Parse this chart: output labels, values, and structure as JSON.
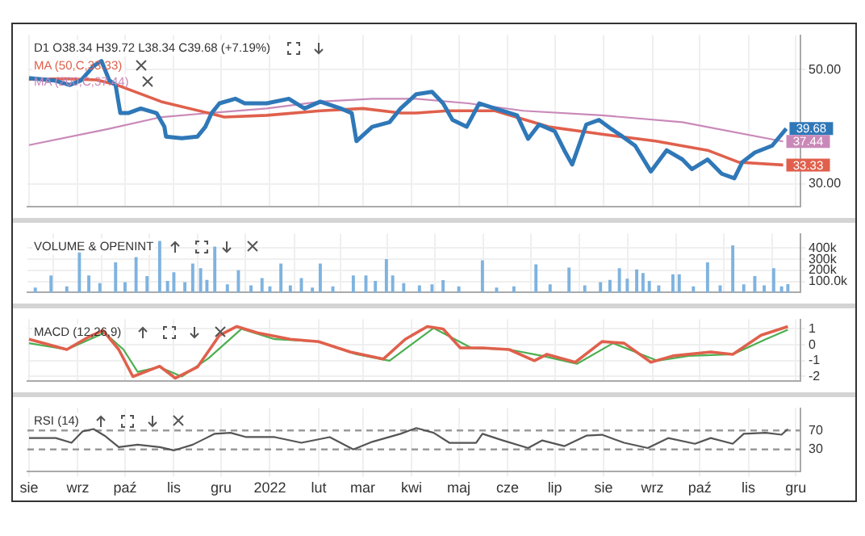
{
  "chart_data": [
    {
      "type": "line",
      "title": "D1 O38.34 H39.72 L38.34 C39.68 (+7.19%)",
      "legend": "top left",
      "grid": true,
      "tick_labels": "y",
      "xlim": [
        "2021-07-31",
        "2022-12-04"
      ],
      "xticks": [
        {
          "value": "2021-08-01",
          "label": null
        },
        {
          "value": "2021-09-01",
          "label": null
        },
        {
          "value": "2021-10-01",
          "label": null
        },
        {
          "value": "2021-11-01",
          "label": null
        },
        {
          "value": "2021-12-01",
          "label": null
        },
        {
          "value": "2022-01-01",
          "label": null
        },
        {
          "value": "2022-02-01",
          "label": null
        },
        {
          "value": "2022-03-01",
          "label": null
        },
        {
          "value": "2022-04-01",
          "label": null
        },
        {
          "value": "2022-05-01",
          "label": null
        },
        {
          "value": "2022-06-01",
          "label": null
        },
        {
          "value": "2022-07-01",
          "label": null
        },
        {
          "value": "2022-08-01",
          "label": null
        },
        {
          "value": "2022-09-01",
          "label": null
        },
        {
          "value": "2022-10-01",
          "label": null
        },
        {
          "value": "2022-11-01",
          "label": null
        },
        {
          "value": "2022-12-01",
          "label": null
        }
      ],
      "ylim": [
        26,
        56
      ],
      "yticks": [
        {
          "value": 30,
          "label": "30.00"
        },
        {
          "value": 50,
          "label": "50.00"
        }
      ],
      "series": [
        {
          "color": "#2f78b8",
          "x": [
            "2021-08-01",
            "2021-08-17",
            "2021-08-27",
            "2021-09-03",
            "2021-09-11",
            "2021-09-16",
            "2021-09-21",
            "2021-09-25",
            "2021-09-28",
            "2021-10-03",
            "2021-10-11",
            "2021-10-21",
            "2021-10-26",
            "2021-10-27",
            "2021-11-06",
            "2021-11-16",
            "2021-11-21",
            "2021-11-25",
            "2021-11-30",
            "2021-12-10",
            "2021-12-16",
            "2021-12-30",
            "2022-01-13",
            "2022-01-23",
            "2022-02-02",
            "2022-02-15",
            "2022-02-22",
            "2022-02-25",
            "2022-03-07",
            "2022-03-18",
            "2022-03-25",
            "2022-04-04",
            "2022-04-14",
            "2022-04-21",
            "2022-04-27",
            "2022-05-06",
            "2022-05-14",
            "2022-05-24",
            "2022-06-07",
            "2022-06-14",
            "2022-06-21",
            "2022-07-01",
            "2022-07-07",
            "2022-07-12",
            "2022-07-21",
            "2022-07-29",
            "2022-08-06",
            "2022-08-13",
            "2022-08-21",
            "2022-08-31",
            "2022-09-10",
            "2022-09-20",
            "2022-09-26",
            "2022-10-06",
            "2022-10-15",
            "2022-10-23",
            "2022-10-28",
            "2022-11-05",
            "2022-11-16",
            "2022-11-25"
          ],
          "values": [
            48.5,
            48.1,
            47.3,
            48.1,
            50.6,
            51.5,
            48.1,
            47.3,
            42.4,
            42.4,
            43.2,
            42.4,
            40.0,
            38.3,
            38.0,
            38.3,
            40.0,
            42.4,
            44.1,
            44.9,
            44.1,
            44.1,
            44.9,
            43.2,
            44.4,
            43.2,
            42.4,
            37.5,
            40.0,
            40.8,
            43.2,
            45.7,
            46.1,
            44.1,
            41.2,
            40.0,
            44.1,
            43.2,
            42.0,
            37.9,
            40.4,
            39.2,
            35.9,
            33.4,
            40.4,
            41.2,
            39.6,
            38.3,
            36.7,
            32.2,
            35.9,
            34.3,
            32.6,
            34.3,
            31.8,
            31.0,
            33.8,
            35.5,
            36.7,
            39.68
          ],
          "value_labels": [
            null,
            null,
            null,
            null,
            null,
            null,
            null,
            null,
            null,
            null,
            null,
            null,
            null,
            null,
            null,
            null,
            null,
            null,
            null,
            null,
            null,
            null,
            null,
            null,
            null,
            null,
            null,
            null,
            null,
            null,
            null,
            null,
            null,
            null,
            null,
            null,
            null,
            null,
            null,
            null,
            null,
            null,
            null,
            null,
            null,
            null,
            null,
            null,
            null,
            null,
            null,
            null,
            null,
            null,
            null,
            null,
            null,
            null,
            null,
            "39.68"
          ]
        },
        {
          "name": "MA (50,C,33.33)",
          "color": "#e0604c",
          "x": [
            "2021-08-01",
            "2021-08-24",
            "2021-09-13",
            "2021-09-26",
            "2021-10-24",
            "2021-11-23",
            "2021-12-03",
            "2021-12-30",
            "2022-02-02",
            "2022-03-01",
            "2022-03-25",
            "2022-04-04",
            "2022-04-24",
            "2022-05-24",
            "2022-06-27",
            "2022-07-31",
            "2022-09-03",
            "2022-10-06",
            "2022-10-26",
            "2022-11-23"
          ],
          "values": [
            48.3,
            48.4,
            48.2,
            47.3,
            44.4,
            42.4,
            41.7,
            42.0,
            42.8,
            43.2,
            42.4,
            42.4,
            42.8,
            42.8,
            40.0,
            38.7,
            37.5,
            35.9,
            33.8,
            33.33
          ],
          "value_labels": [
            null,
            null,
            null,
            null,
            null,
            null,
            null,
            null,
            null,
            null,
            null,
            null,
            null,
            null,
            null,
            null,
            null,
            null,
            null,
            "33.33"
          ]
        },
        {
          "name": "MA (200,C,37.44)",
          "color": "#c989b8",
          "x": [
            "2021-08-01",
            "2021-09-20",
            "2021-10-24",
            "2021-11-23",
            "2021-12-30",
            "2022-02-02",
            "2022-03-07",
            "2022-04-04",
            "2022-05-07",
            "2022-06-11",
            "2022-07-31",
            "2022-09-20",
            "2022-11-23"
          ],
          "values": [
            36.8,
            39.6,
            41.7,
            42.4,
            43.2,
            44.4,
            44.9,
            44.9,
            44.1,
            42.8,
            42.0,
            40.8,
            37.44
          ],
          "value_labels": [
            null,
            null,
            null,
            null,
            null,
            null,
            null,
            null,
            null,
            null,
            null,
            null,
            "37.44"
          ]
        }
      ]
    },
    {
      "type": "bar",
      "title": "VOLUME & OPENINT",
      "grid": true,
      "tick_labels": "y",
      "color": "#7fb3df",
      "xlim": [
        "2021-07-31",
        "2022-12-04"
      ],
      "xticks": [
        {
          "value": "2021-08-01",
          "label": null
        },
        {
          "value": "2021-09-01",
          "label": null
        },
        {
          "value": "2021-10-01",
          "label": null
        },
        {
          "value": "2021-11-01",
          "label": null
        },
        {
          "value": "2021-12-01",
          "label": null
        },
        {
          "value": "2022-01-01",
          "label": null
        },
        {
          "value": "2022-02-01",
          "label": null
        },
        {
          "value": "2022-03-01",
          "label": null
        },
        {
          "value": "2022-04-01",
          "label": null
        },
        {
          "value": "2022-05-01",
          "label": null
        },
        {
          "value": "2022-06-01",
          "label": null
        },
        {
          "value": "2022-07-01",
          "label": null
        },
        {
          "value": "2022-08-01",
          "label": null
        },
        {
          "value": "2022-09-01",
          "label": null
        },
        {
          "value": "2022-10-01",
          "label": null
        },
        {
          "value": "2022-11-01",
          "label": null
        },
        {
          "value": "2022-12-01",
          "label": null
        }
      ],
      "ylim": [
        0,
        530000
      ],
      "yticks": [
        {
          "value": 100000,
          "label": "100.0k"
        },
        {
          "value": 200000,
          "label": "200k"
        },
        {
          "value": 300000,
          "label": "300k"
        },
        {
          "value": 400000,
          "label": "400k"
        }
      ],
      "x": [
        "2021-08-05",
        "2021-08-15",
        "2021-08-25",
        "2021-09-02",
        "2021-09-08",
        "2021-09-15",
        "2021-09-25",
        "2021-10-01",
        "2021-10-08",
        "2021-10-15",
        "2021-10-23",
        "2021-10-28",
        "2021-11-01",
        "2021-11-08",
        "2021-11-13",
        "2021-11-18",
        "2021-11-22",
        "2021-11-27",
        "2021-12-05",
        "2021-12-12",
        "2021-12-20",
        "2021-12-27",
        "2022-01-01",
        "2022-01-08",
        "2022-01-14",
        "2022-01-21",
        "2022-01-28",
        "2022-02-02",
        "2022-02-10",
        "2022-02-23",
        "2022-03-03",
        "2022-03-09",
        "2022-03-16",
        "2022-03-20",
        "2022-03-27",
        "2022-04-06",
        "2022-04-14",
        "2022-04-21",
        "2022-05-01",
        "2022-05-16",
        "2022-05-25",
        "2022-06-05",
        "2022-06-19",
        "2022-06-28",
        "2022-07-10",
        "2022-07-20",
        "2022-07-30",
        "2022-08-05",
        "2022-08-11",
        "2022-08-16",
        "2022-08-22",
        "2022-08-26",
        "2022-08-30",
        "2022-09-05",
        "2022-09-14",
        "2022-09-18",
        "2022-09-27",
        "2022-10-06",
        "2022-10-14",
        "2022-10-22",
        "2022-10-29",
        "2022-11-05",
        "2022-11-11",
        "2022-11-17",
        "2022-11-22",
        "2022-11-26"
      ],
      "values": [
        40000,
        150000,
        50000,
        357000,
        150000,
        80000,
        268000,
        90000,
        314000,
        143000,
        460000,
        100000,
        179000,
        90000,
        257000,
        214000,
        110000,
        410000,
        70000,
        196000,
        60000,
        125000,
        50000,
        257000,
        60000,
        125000,
        40000,
        257000,
        50000,
        150000,
        150000,
        100000,
        296000,
        150000,
        80000,
        60000,
        70000,
        107000,
        50000,
        286000,
        40000,
        50000,
        250000,
        70000,
        221000,
        60000,
        90000,
        110000,
        214000,
        120000,
        203000,
        171000,
        100000,
        60000,
        161000,
        161000,
        50000,
        268000,
        60000,
        421000,
        70000,
        143000,
        60000,
        214000,
        50000,
        71000
      ]
    },
    {
      "type": "line",
      "title": "MACD (12,26,9)",
      "grid": true,
      "tick_labels": "y",
      "xlim": [
        "2021-07-31",
        "2022-12-04"
      ],
      "xticks": [
        {
          "value": "2021-08-01",
          "label": null
        },
        {
          "value": "2021-09-01",
          "label": null
        },
        {
          "value": "2021-10-01",
          "label": null
        },
        {
          "value": "2021-11-01",
          "label": null
        },
        {
          "value": "2021-12-01",
          "label": null
        },
        {
          "value": "2022-01-01",
          "label": null
        },
        {
          "value": "2022-02-01",
          "label": null
        },
        {
          "value": "2022-03-01",
          "label": null
        },
        {
          "value": "2022-04-01",
          "label": null
        },
        {
          "value": "2022-05-01",
          "label": null
        },
        {
          "value": "2022-06-01",
          "label": null
        },
        {
          "value": "2022-07-01",
          "label": null
        },
        {
          "value": "2022-08-01",
          "label": null
        },
        {
          "value": "2022-09-01",
          "label": null
        },
        {
          "value": "2022-10-01",
          "label": null
        },
        {
          "value": "2022-11-01",
          "label": null
        },
        {
          "value": "2022-12-01",
          "label": null
        }
      ],
      "ylim": [
        -2.3,
        1.6
      ],
      "yticks": [
        -2,
        -1,
        0,
        1
      ],
      "series": [
        {
          "color": "#e0604c",
          "x": [
            "2021-08-01",
            "2021-08-25",
            "2021-09-08",
            "2021-09-17",
            "2021-09-27",
            "2021-10-06",
            "2021-10-23",
            "2021-11-02",
            "2021-11-16",
            "2021-11-30",
            "2021-12-11",
            "2021-12-24",
            "2022-01-14",
            "2022-02-01",
            "2022-02-21",
            "2022-03-14",
            "2022-03-28",
            "2022-04-11",
            "2022-04-21",
            "2022-05-02",
            "2022-05-16",
            "2022-06-02",
            "2022-06-18",
            "2022-06-26",
            "2022-07-14",
            "2022-07-31",
            "2022-08-14",
            "2022-08-31",
            "2022-09-14",
            "2022-10-08",
            "2022-10-22",
            "2022-11-09",
            "2022-11-26"
          ],
          "values": [
            0.35,
            -0.3,
            0.5,
            0.9,
            -0.3,
            -2.0,
            -1.35,
            -2.1,
            -1.4,
            0.6,
            1.15,
            0.75,
            0.35,
            0.2,
            -0.45,
            -0.9,
            0.35,
            1.15,
            1.0,
            -0.2,
            -0.2,
            -0.3,
            -1.0,
            -0.6,
            -1.1,
            0.2,
            0.1,
            -1.1,
            -0.7,
            -0.45,
            -0.6,
            0.6,
            1.15
          ]
        },
        {
          "color": "#4caf50",
          "x": [
            "2021-08-01",
            "2021-08-25",
            "2021-09-18",
            "2021-09-30",
            "2021-10-09",
            "2021-10-23",
            "2021-11-06",
            "2021-11-23",
            "2021-12-14",
            "2022-01-04",
            "2022-02-01",
            "2022-02-25",
            "2022-03-18",
            "2022-04-15",
            "2022-05-09",
            "2022-06-02",
            "2022-06-23",
            "2022-07-15",
            "2022-08-07",
            "2022-09-04",
            "2022-09-24",
            "2022-10-22",
            "2022-11-12",
            "2022-11-26"
          ],
          "values": [
            0.1,
            -0.3,
            0.75,
            -0.3,
            -1.7,
            -1.4,
            -2.0,
            -0.85,
            1.0,
            0.35,
            0.2,
            -0.6,
            -1.0,
            1.05,
            -0.2,
            -0.3,
            -0.7,
            -1.2,
            0.1,
            -1.0,
            -0.7,
            -0.6,
            0.35,
            0.95
          ]
        }
      ]
    },
    {
      "type": "line",
      "title": "RSI (14)",
      "grid": "x",
      "xlim": [
        "2021-07-31",
        "2022-12-04"
      ],
      "xticks": [
        {
          "value": "2021-08-01",
          "label": "sie"
        },
        {
          "value": "2021-09-01",
          "label": "wrz"
        },
        {
          "value": "2021-10-01",
          "label": "paź"
        },
        {
          "value": "2021-11-01",
          "label": "lis"
        },
        {
          "value": "2021-12-01",
          "label": "gru"
        },
        {
          "value": "2022-01-01",
          "label": "2022"
        },
        {
          "value": "2022-02-01",
          "label": "lut"
        },
        {
          "value": "2022-03-01",
          "label": "mar"
        },
        {
          "value": "2022-04-01",
          "label": "kwi"
        },
        {
          "value": "2022-05-01",
          "label": "maj"
        },
        {
          "value": "2022-06-01",
          "label": "cze"
        },
        {
          "value": "2022-07-01",
          "label": "lip"
        },
        {
          "value": "2022-08-01",
          "label": "sie"
        },
        {
          "value": "2022-09-01",
          "label": "wrz"
        },
        {
          "value": "2022-10-01",
          "label": "paź"
        },
        {
          "value": "2022-11-01",
          "label": "lis"
        },
        {
          "value": "2022-12-01",
          "label": "gru"
        }
      ],
      "ylim": [
        -17,
        117
      ],
      "yticks": [
        30,
        70
      ],
      "ref_lines": [
        {
          "axis": "y",
          "value": 70,
          "color": "#999999",
          "line_style": "dashed"
        },
        {
          "axis": "y",
          "value": 30,
          "color": "#999999",
          "line_style": "dashed"
        }
      ],
      "series": [
        {
          "color": "#555555",
          "x": [
            "2021-08-01",
            "2021-08-18",
            "2021-08-28",
            "2021-09-04",
            "2021-09-11",
            "2021-09-18",
            "2021-09-27",
            "2021-10-09",
            "2021-10-23",
            "2021-11-01",
            "2021-11-13",
            "2021-11-27",
            "2021-12-07",
            "2021-12-17",
            "2022-01-04",
            "2022-01-21",
            "2022-02-08",
            "2022-02-23",
            "2022-03-07",
            "2022-03-25",
            "2022-04-04",
            "2022-04-15",
            "2022-04-25",
            "2022-05-12",
            "2022-05-16",
            "2022-05-29",
            "2022-06-14",
            "2022-06-23",
            "2022-07-07",
            "2022-07-21",
            "2022-07-31",
            "2022-08-14",
            "2022-08-29",
            "2022-09-11",
            "2022-09-28",
            "2022-10-08",
            "2022-10-22",
            "2022-10-29",
            "2022-11-12",
            "2022-11-22",
            "2022-11-26"
          ],
          "values": [
            54,
            54,
            44,
            68,
            73,
            59,
            35,
            40,
            35,
            28,
            40,
            63,
            65,
            56,
            56,
            44,
            56,
            30,
            46,
            63,
            75,
            65,
            44,
            44,
            63,
            49,
            33,
            49,
            37,
            59,
            61,
            44,
            33,
            54,
            42,
            54,
            42,
            63,
            65,
            61,
            73
          ]
        }
      ]
    }
  ]
}
